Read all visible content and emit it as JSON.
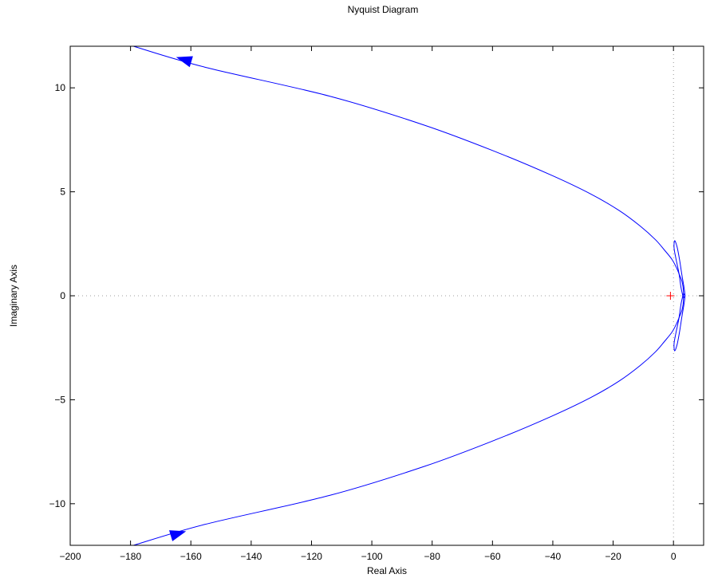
{
  "chart_data": {
    "type": "line",
    "title": "Nyquist Diagram",
    "xlabel": "Real Axis",
    "ylabel": "Imaginary Axis",
    "xlim": [
      -200,
      10
    ],
    "ylim": [
      -12,
      12
    ],
    "grid": false,
    "x_ticks": [
      -200,
      -180,
      -160,
      -140,
      -120,
      -100,
      -80,
      -60,
      -40,
      -20,
      0
    ],
    "x_tick_labels": [
      "−200",
      "−180",
      "−160",
      "−140",
      "−120",
      "−100",
      "−80",
      "−60",
      "−40",
      "−20",
      "0"
    ],
    "y_ticks": [
      -10,
      -5,
      0,
      5,
      10
    ],
    "y_tick_labels": [
      "−10",
      "−5",
      "0",
      "5",
      "10"
    ],
    "critical_point": {
      "x": -1,
      "y": 0,
      "marker": "+",
      "color": "#ff0000"
    },
    "reference_lines": {
      "x": 0,
      "y": 0,
      "style": "dotted",
      "color": "#808080"
    },
    "series": [
      {
        "color": "#0000ff",
        "branch": "positive_frequency",
        "x": [
          -179.0,
          -155.5,
          -114.0,
          -82.5,
          -58.5,
          -40.5,
          -27.5,
          -18.0,
          -11.0,
          -6.0,
          -3.0,
          -0.5,
          1.0,
          2.0,
          2.8,
          3.2,
          3.3,
          3.1,
          2.5,
          1.8,
          0.8,
          0.2,
          0.4,
          1.2,
          2.0,
          2.8,
          3.5,
          3.8,
          3.7,
          3.3
        ],
        "y": [
          12.0,
          11.0,
          9.6,
          8.2,
          6.9,
          5.8,
          4.9,
          4.1,
          3.35,
          2.7,
          2.2,
          1.75,
          1.35,
          1.0,
          0.7,
          0.4,
          0.15,
          0.0,
          -0.4,
          -1.1,
          -1.8,
          -2.3,
          -2.65,
          -2.35,
          -1.75,
          -1.0,
          -0.4,
          -0.05,
          0.1,
          0.0
        ],
        "direction_arrow": {
          "x": -162.0,
          "y": 11.35
        }
      },
      {
        "color": "#0000ff",
        "branch": "negative_frequency",
        "x": [
          -179.0,
          -155.5,
          -114.0,
          -82.5,
          -58.5,
          -40.5,
          -27.5,
          -18.0,
          -11.0,
          -6.0,
          -3.0,
          -0.5,
          1.0,
          2.0,
          2.8,
          3.2,
          3.3,
          3.1,
          2.5,
          1.8,
          0.8,
          0.2,
          0.4,
          1.2,
          2.0,
          2.8,
          3.5,
          3.8,
          3.7,
          3.3
        ],
        "y": [
          -12.0,
          -11.0,
          -9.6,
          -8.2,
          -6.9,
          -5.8,
          -4.9,
          -4.1,
          -3.35,
          -2.7,
          -2.2,
          -1.75,
          -1.35,
          -1.0,
          -0.7,
          -0.4,
          -0.15,
          0.0,
          0.4,
          1.1,
          1.8,
          2.3,
          2.65,
          2.35,
          1.75,
          1.0,
          0.4,
          0.05,
          -0.1,
          0.0
        ],
        "direction_arrow": {
          "x": -164.5,
          "y": -11.45
        }
      }
    ]
  }
}
